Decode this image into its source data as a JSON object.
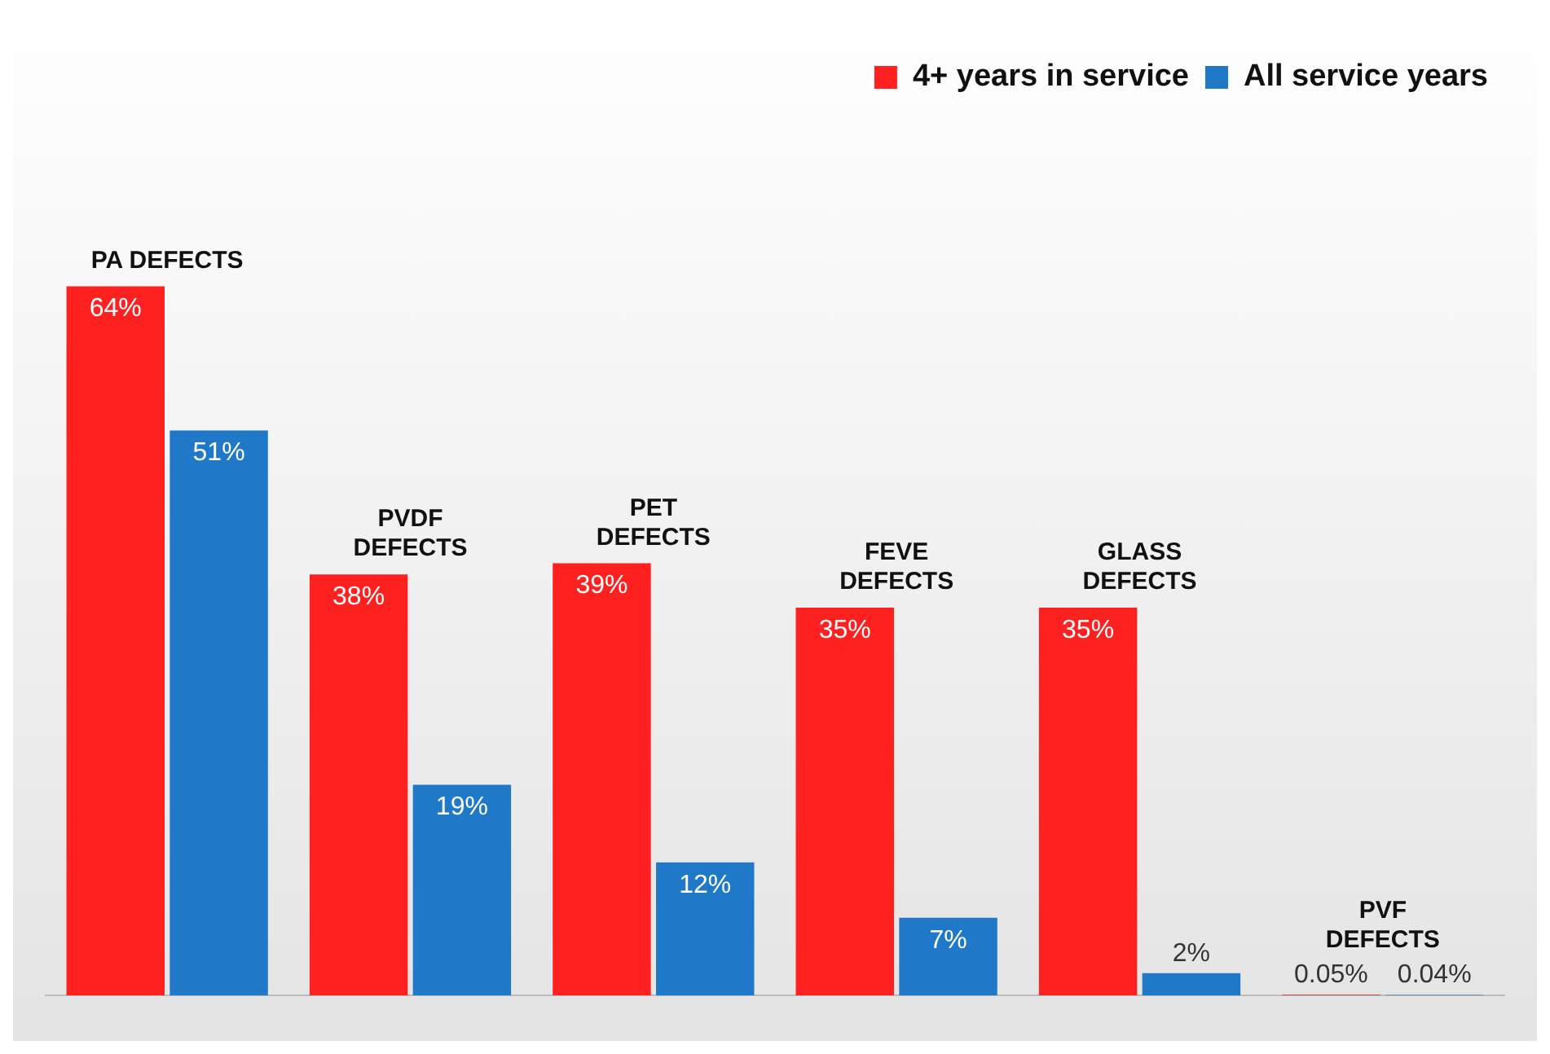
{
  "chart_data": {
    "type": "bar",
    "categories": [
      "PA DEFECTS",
      "PVDF DEFECTS",
      "PET DEFECTS",
      "FEVE DEFECTS",
      "GLASS DEFECTS",
      "PVF DEFECTS"
    ],
    "series": [
      {
        "name": "4+ years in service",
        "color": "#ff2020",
        "values": [
          64,
          38,
          39,
          35,
          35,
          0.05
        ],
        "value_labels": [
          "64%",
          "38%",
          "39%",
          "35%",
          "35%",
          "0.05%"
        ]
      },
      {
        "name": "All service years",
        "color": "#1f78c8",
        "values": [
          51,
          19,
          12,
          7,
          2,
          0.04
        ],
        "value_labels": [
          "51%",
          "19%",
          "12%",
          "7%",
          "2%",
          "0.04%"
        ]
      }
    ],
    "data_labels": true,
    "legend": "top right"
  }
}
